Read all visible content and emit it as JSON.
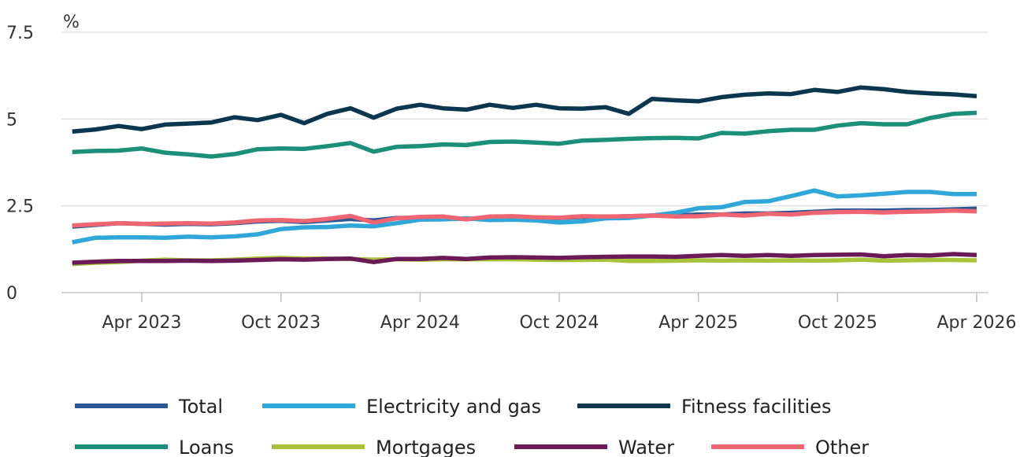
{
  "chart_data": {
    "type": "line",
    "title": "",
    "xlabel": "",
    "ylabel": "%",
    "ylim": [
      0,
      7.5
    ],
    "yticks": [
      "0",
      "2.5",
      "5",
      "7.5"
    ],
    "xticks": [
      {
        "date": "2023-04",
        "label": "Apr 2023"
      },
      {
        "date": "2023-10",
        "label": "Oct 2023"
      },
      {
        "date": "2024-04",
        "label": "Apr 2024"
      },
      {
        "date": "2024-10",
        "label": "Oct 2024"
      },
      {
        "date": "2025-04",
        "label": "Apr 2025"
      },
      {
        "date": "2025-10",
        "label": "Oct 2025"
      },
      {
        "date": "2026-04",
        "label": "Apr 2026"
      }
    ],
    "grid": "horizontal",
    "legend_position": "bottom",
    "x": [
      "2023-01",
      "2023-02",
      "2023-03",
      "2023-04",
      "2023-05",
      "2023-06",
      "2023-07",
      "2023-08",
      "2023-09",
      "2023-10",
      "2023-11",
      "2023-12",
      "2024-01",
      "2024-02",
      "2024-03",
      "2024-04",
      "2024-05",
      "2024-06",
      "2024-07",
      "2024-08",
      "2024-09",
      "2024-10",
      "2024-11",
      "2024-12",
      "2025-01",
      "2025-02",
      "2025-03",
      "2025-04",
      "2025-05",
      "2025-06",
      "2025-07",
      "2025-08",
      "2025-09",
      "2025-10",
      "2025-11",
      "2025-12",
      "2026-01",
      "2026-02",
      "2026-03",
      "2026-04"
    ],
    "series": [
      {
        "name": "Total",
        "color": "#2b5797",
        "values": [
          1.9,
          1.95,
          2.0,
          1.98,
          1.96,
          1.98,
          1.97,
          2.0,
          2.05,
          2.07,
          2.03,
          2.08,
          2.12,
          2.08,
          2.15,
          2.15,
          2.15,
          2.12,
          2.16,
          2.15,
          2.15,
          2.15,
          2.18,
          2.18,
          2.2,
          2.22,
          2.22,
          2.25,
          2.25,
          2.28,
          2.28,
          2.3,
          2.33,
          2.36,
          2.36,
          2.36,
          2.38,
          2.38,
          2.4,
          2.42
        ]
      },
      {
        "name": "Electricity and gas",
        "color": "#2fa7d9",
        "values": [
          1.45,
          1.58,
          1.59,
          1.59,
          1.58,
          1.61,
          1.59,
          1.62,
          1.68,
          1.83,
          1.88,
          1.89,
          1.93,
          1.91,
          2.0,
          2.1,
          2.11,
          2.14,
          2.09,
          2.1,
          2.08,
          2.02,
          2.05,
          2.14,
          2.15,
          2.22,
          2.3,
          2.43,
          2.46,
          2.61,
          2.63,
          2.78,
          2.94,
          2.77,
          2.8,
          2.85,
          2.9,
          2.9,
          2.84,
          2.84
        ]
      },
      {
        "name": "Fitness facilities",
        "color": "#0a3650",
        "values": [
          4.64,
          4.7,
          4.8,
          4.71,
          4.84,
          4.87,
          4.9,
          5.05,
          4.97,
          5.12,
          4.88,
          5.15,
          5.31,
          5.04,
          5.3,
          5.41,
          5.31,
          5.27,
          5.41,
          5.32,
          5.41,
          5.31,
          5.3,
          5.34,
          5.15,
          5.58,
          5.54,
          5.51,
          5.63,
          5.7,
          5.74,
          5.72,
          5.84,
          5.78,
          5.91,
          5.86,
          5.78,
          5.74,
          5.71,
          5.66
        ]
      },
      {
        "name": "Loans",
        "color": "#1b8f7a",
        "values": [
          4.05,
          4.08,
          4.09,
          4.15,
          4.03,
          3.98,
          3.92,
          3.99,
          4.13,
          4.15,
          4.14,
          4.22,
          4.31,
          4.06,
          4.2,
          4.22,
          4.27,
          4.25,
          4.34,
          4.35,
          4.32,
          4.29,
          4.38,
          4.4,
          4.43,
          4.45,
          4.46,
          4.44,
          4.6,
          4.58,
          4.65,
          4.69,
          4.69,
          4.81,
          4.88,
          4.85,
          4.85,
          5.03,
          5.15,
          5.18
        ]
      },
      {
        "name": "Mortgages",
        "color": "#a8c23a",
        "values": [
          0.82,
          0.86,
          0.88,
          0.92,
          0.95,
          0.93,
          0.93,
          0.95,
          0.98,
          1.0,
          0.98,
          0.98,
          0.97,
          0.95,
          0.96,
          0.95,
          0.96,
          0.96,
          0.96,
          0.96,
          0.95,
          0.94,
          0.94,
          0.95,
          0.91,
          0.91,
          0.92,
          0.93,
          0.92,
          0.93,
          0.92,
          0.93,
          0.92,
          0.93,
          0.95,
          0.92,
          0.93,
          0.94,
          0.94,
          0.93
        ]
      },
      {
        "name": "Water",
        "color": "#6b1a57",
        "values": [
          0.86,
          0.89,
          0.91,
          0.91,
          0.91,
          0.92,
          0.91,
          0.92,
          0.94,
          0.96,
          0.95,
          0.97,
          0.98,
          0.88,
          0.97,
          0.97,
          1.0,
          0.97,
          1.01,
          1.02,
          1.01,
          1.0,
          1.02,
          1.03,
          1.04,
          1.04,
          1.03,
          1.06,
          1.08,
          1.06,
          1.08,
          1.06,
          1.08,
          1.09,
          1.1,
          1.05,
          1.08,
          1.07,
          1.11,
          1.08
        ]
      },
      {
        "name": "Other",
        "color": "#ef6672",
        "values": [
          1.93,
          1.97,
          2.0,
          1.98,
          1.99,
          2.0,
          1.99,
          2.02,
          2.08,
          2.09,
          2.06,
          2.12,
          2.21,
          2.02,
          2.14,
          2.18,
          2.19,
          2.11,
          2.19,
          2.2,
          2.17,
          2.16,
          2.2,
          2.19,
          2.2,
          2.22,
          2.19,
          2.2,
          2.25,
          2.22,
          2.27,
          2.25,
          2.3,
          2.32,
          2.33,
          2.31,
          2.33,
          2.34,
          2.36,
          2.34
        ]
      }
    ]
  }
}
